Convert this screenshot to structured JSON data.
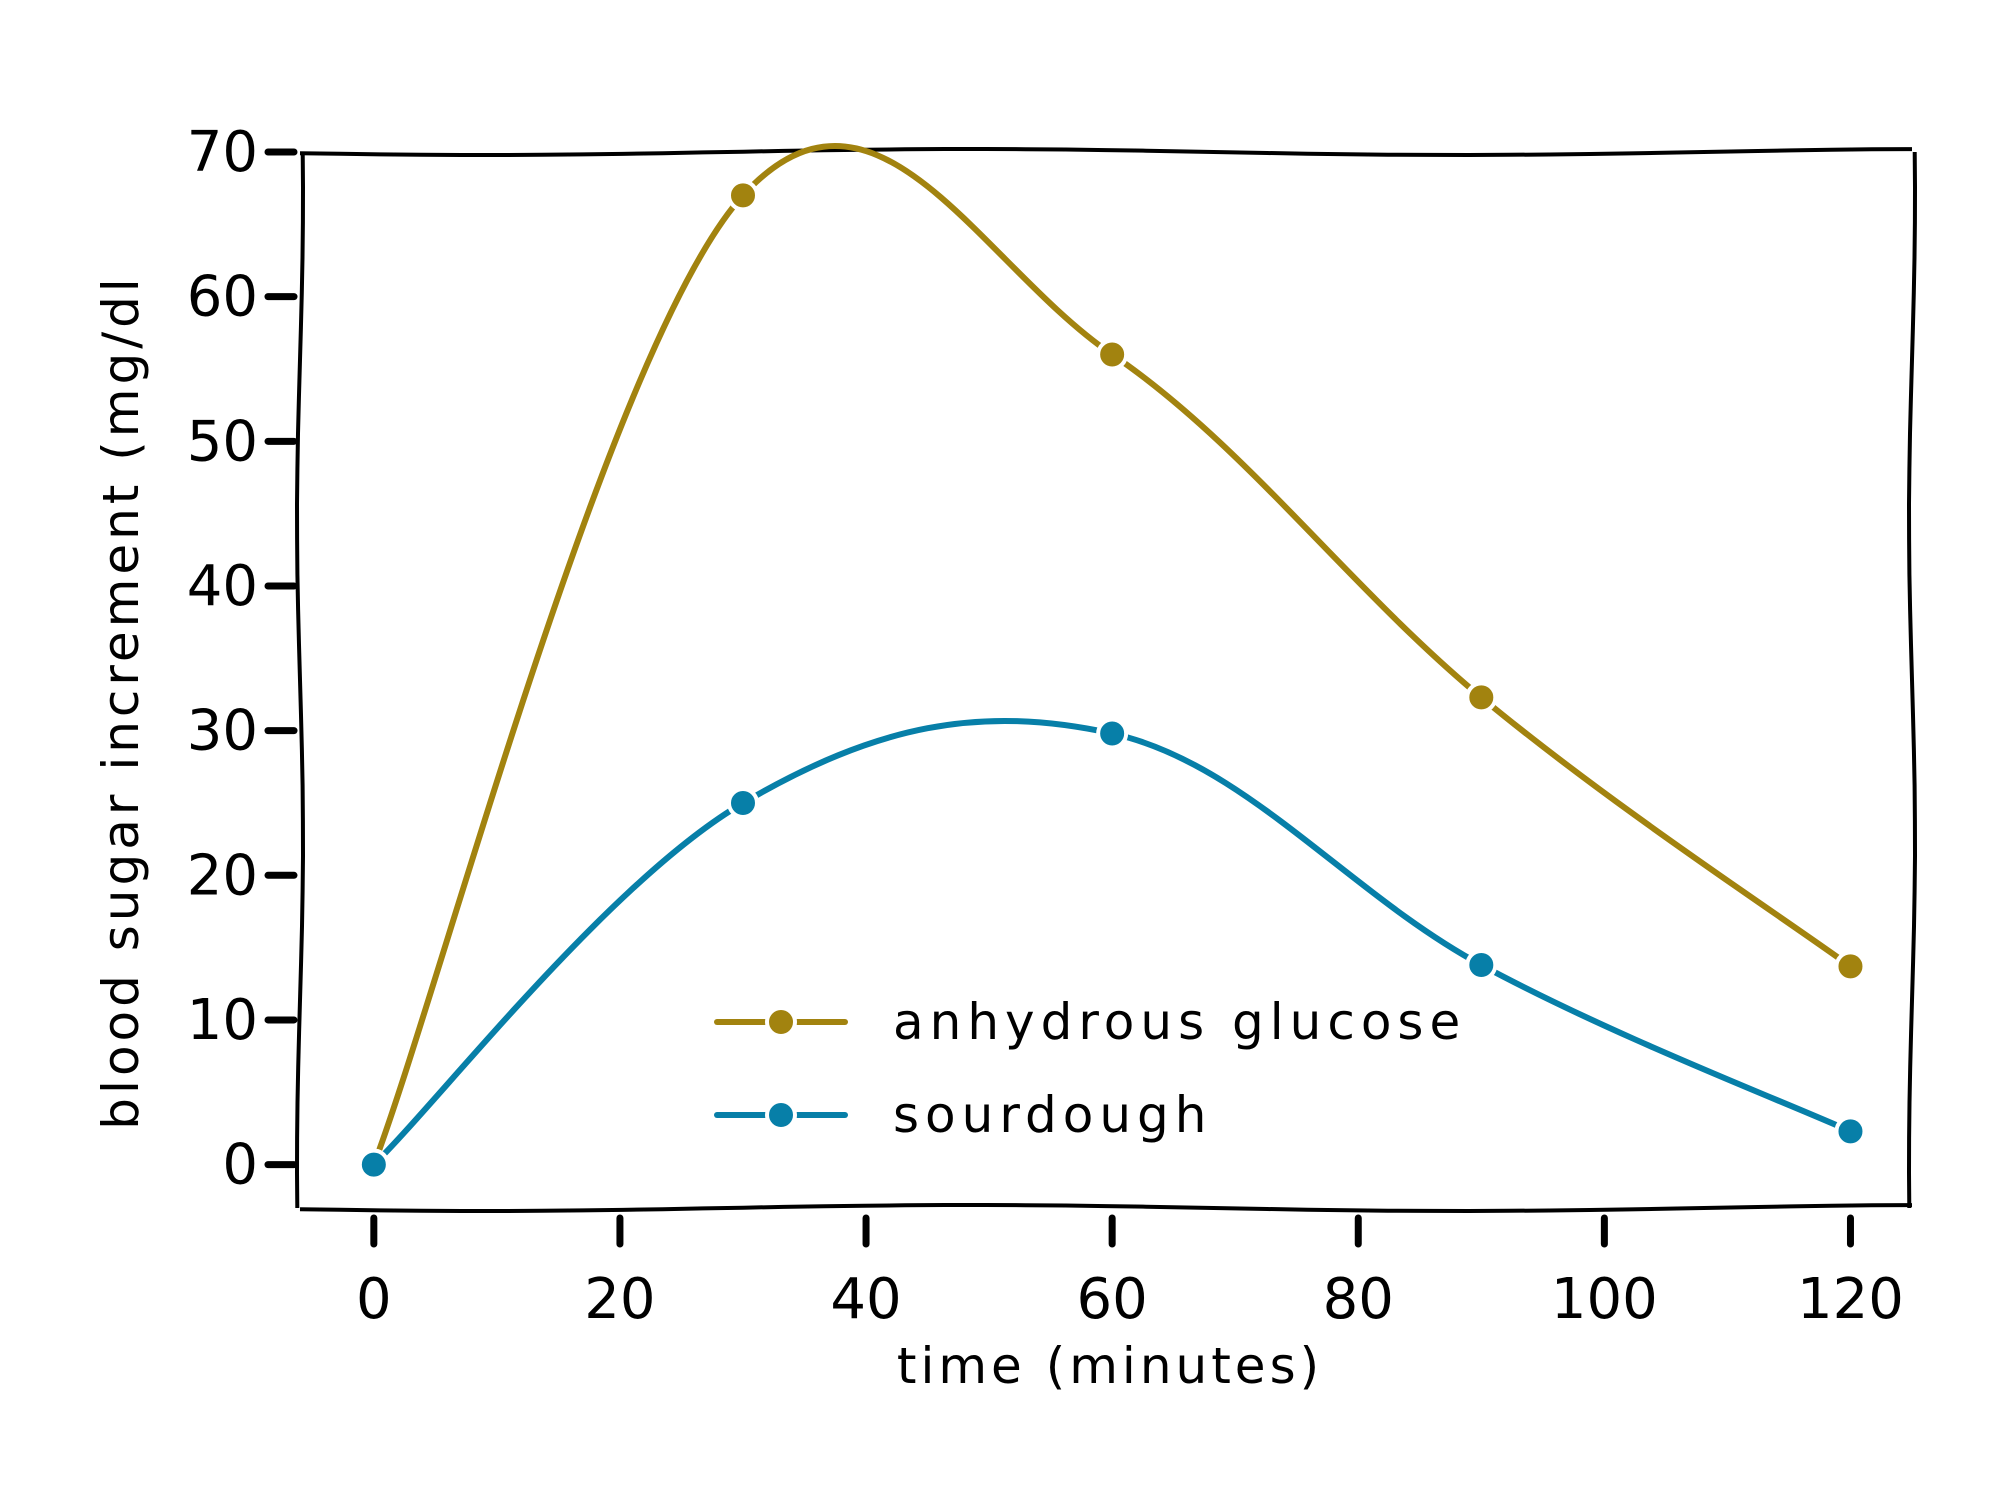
{
  "chart_data": {
    "type": "line",
    "title": "",
    "xlabel": "time (minutes)",
    "ylabel": "blood sugar increment (mg/dl",
    "x": [
      0,
      30,
      60,
      90,
      120
    ],
    "xlim": [
      -6,
      125
    ],
    "ylim": [
      -3,
      70
    ],
    "xticks": [
      0,
      20,
      40,
      60,
      80,
      100,
      120
    ],
    "yticks": [
      0,
      10,
      20,
      30,
      40,
      50,
      60,
      70
    ],
    "grid": false,
    "legend_position": "lower-center",
    "series": [
      {
        "name": "anhydrous glucose",
        "color": "#a2830f",
        "values": [
          0,
          67,
          56,
          32.3,
          13.7
        ]
      },
      {
        "name": "sourdough",
        "color": "#077fa8",
        "values": [
          0,
          25,
          29.8,
          13.8,
          2.3
        ]
      }
    ]
  }
}
